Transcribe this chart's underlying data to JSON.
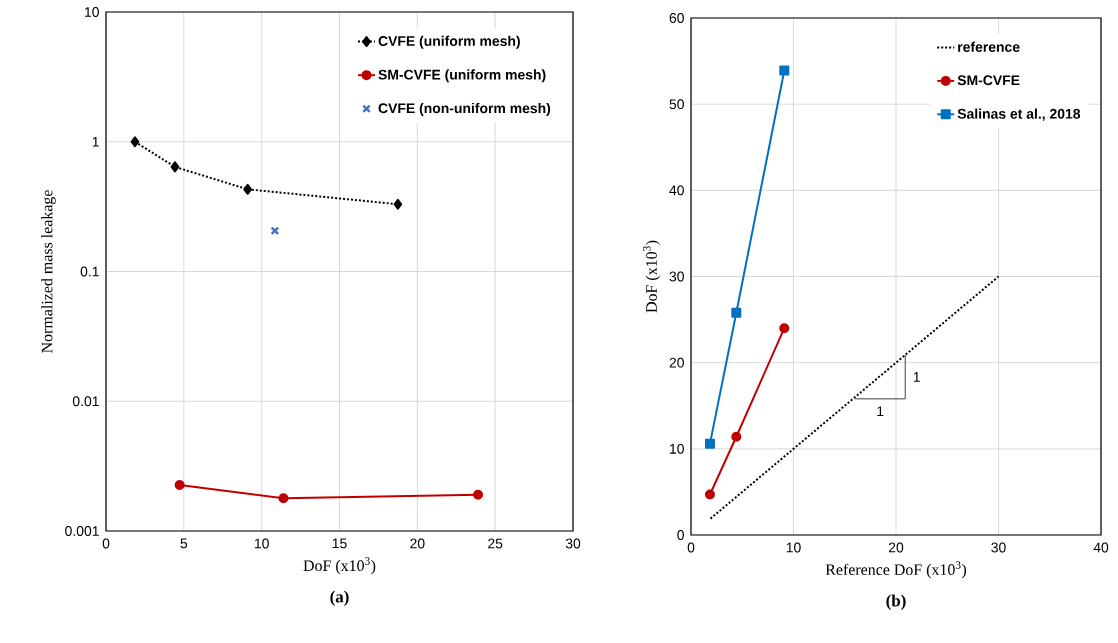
{
  "chart_data": [
    {
      "type": "line",
      "title": "**(a)**",
      "xlabel": "DoF (x10$^{3}$)",
      "ylabel": "Normalized mass leakage",
      "log": "y",
      "grid": true,
      "legend": "top right",
      "xlim": [
        0,
        30
      ],
      "xticks": [
        0,
        5,
        10,
        15,
        20,
        25,
        30
      ],
      "ylim": [
        0.001,
        10
      ],
      "yticks": [
        0.001,
        0.01,
        0.1,
        1,
        10
      ],
      "series": [
        {
          "name": "CVFE (uniform mesh)",
          "color": "#000000",
          "marker": "diamond",
          "line_style": "dotted",
          "x": [
            1.86,
            4.43,
            9.1,
            18.75
          ],
          "values": [
            1.0,
            0.64,
            0.43,
            0.33
          ]
        },
        {
          "name": "SM-CVFE (uniform mesh)",
          "color": "#c00000",
          "marker": "circle",
          "line_style": "solid",
          "x": [
            4.73,
            11.4,
            23.9
          ],
          "values": [
            0.00226,
            0.00179,
            0.0019
          ]
        },
        {
          "name": "CVFE (non-uniform mesh)",
          "type": "scatter",
          "color": "#4472c4",
          "marker": "cross",
          "x": [
            10.85
          ],
          "values": [
            0.206
          ]
        }
      ]
    },
    {
      "type": "line",
      "title": "**(b)**",
      "xlabel": "Reference DoF (x10$^{3}$)",
      "ylabel": "DoF (x10$^{3}$)",
      "grid": true,
      "legend": "top right",
      "xlim": [
        0,
        40
      ],
      "xticks": [
        0,
        10,
        20,
        30,
        40
      ],
      "ylim": [
        0,
        60
      ],
      "yticks": [
        0,
        10,
        20,
        30,
        40,
        50,
        60
      ],
      "series": [
        {
          "name": "reference",
          "color": "#000000",
          "marker": "none",
          "line_style": "dotted",
          "x": [
            1.9,
            30
          ],
          "values": [
            1.9,
            30
          ]
        },
        {
          "name": "SM-CVFE",
          "color": "#c00000",
          "marker": "circle",
          "line_style": "solid",
          "x": [
            1.85,
            4.42,
            9.1
          ],
          "values": [
            4.7,
            11.4,
            24.0
          ]
        },
        {
          "name": "Salinas et al., 2018",
          "color": "#0070c0",
          "marker": "square",
          "line_style": "solid",
          "x": [
            1.85,
            4.42,
            9.1
          ],
          "values": [
            10.6,
            25.8,
            53.9
          ]
        },
        {
          "color": "#404040",
          "marker": "none",
          "line_style": "solid",
          "x": [
            16,
            20.9,
            20.9
          ],
          "values": [
            15.8,
            15.8,
            20.9
          ]
        }
      ],
      "annotations": [
        "1",
        "1"
      ]
    }
  ]
}
